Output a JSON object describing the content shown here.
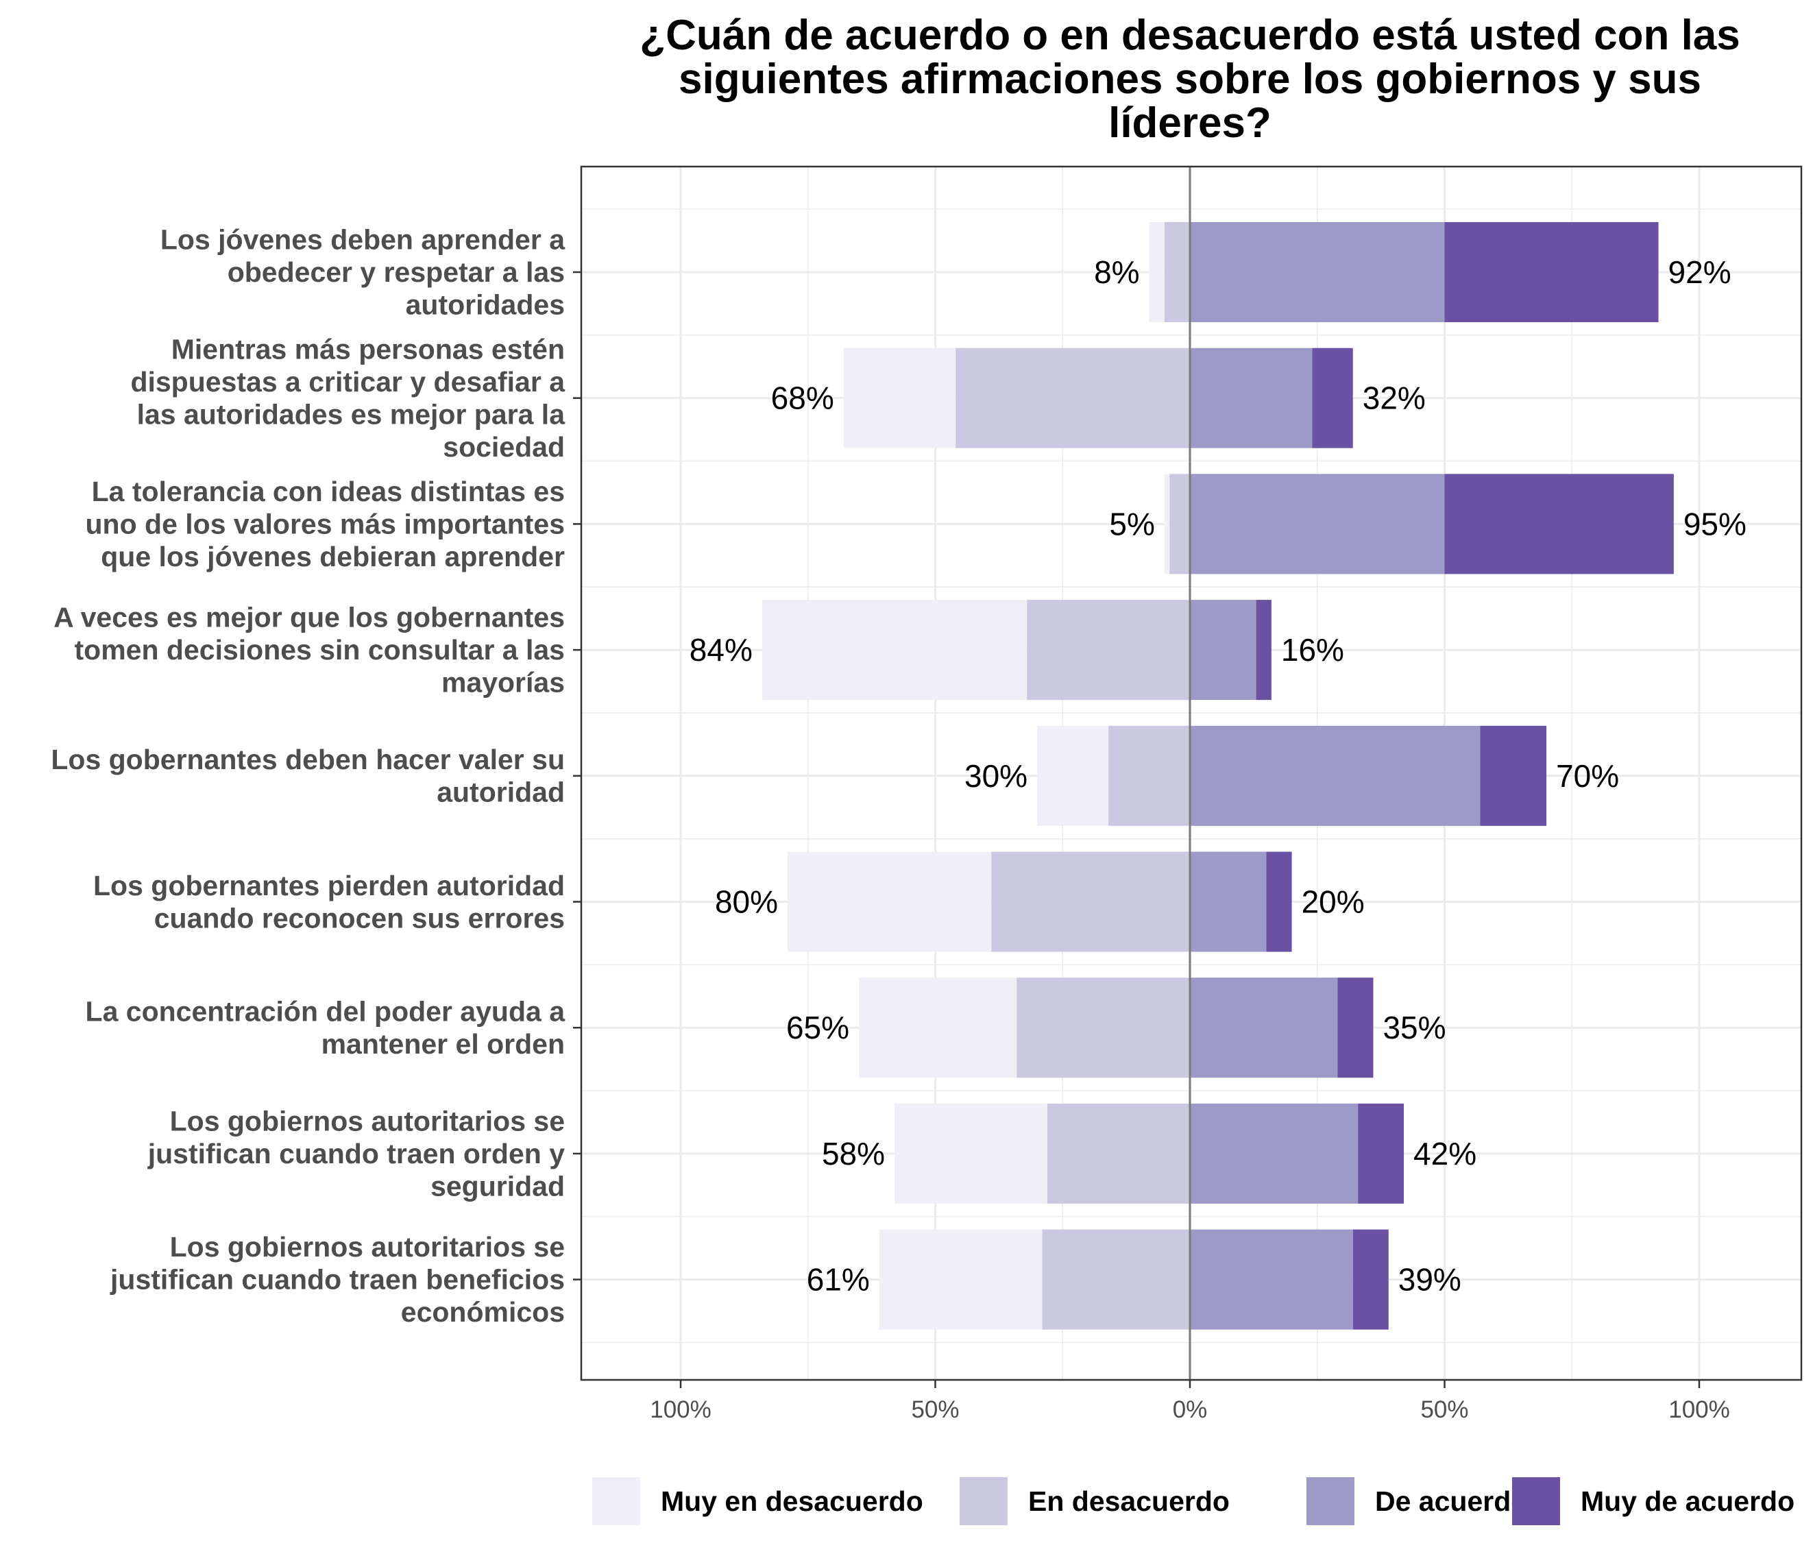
{
  "chart_data": {
    "type": "bar",
    "orientation": "horizontal-diverging",
    "title_lines": [
      "¿Cuán de acuerdo o en desacuerdo está usted con las",
      "siguientes afirmaciones sobre los gobiernos y sus",
      "líderes?"
    ],
    "xlim": [
      -100,
      100
    ],
    "x_ticks": [
      {
        "value": -100,
        "label": "100%"
      },
      {
        "value": -50,
        "label": "50%"
      },
      {
        "value": 0,
        "label": "0%"
      },
      {
        "value": 50,
        "label": "50%"
      },
      {
        "value": 100,
        "label": "100%"
      }
    ],
    "grid": true,
    "legend_position": "bottom",
    "series": [
      {
        "name": "Muy en desacuerdo",
        "color": "#f0eff7",
        "side": "negative"
      },
      {
        "name": "En desacuerdo",
        "color": "#cbc9e2",
        "side": "negative"
      },
      {
        "name": "De acuerdo",
        "color": "#9e9ac8",
        "side": "positive"
      },
      {
        "name": "Muy de acuerdo",
        "color": "#6a51a3",
        "side": "positive"
      }
    ],
    "categories": [
      {
        "lines": [
          "Los jóvenes deben aprender a",
          "obedecer y respetar a las",
          "autoridades"
        ],
        "values": [
          3,
          5,
          50,
          42
        ],
        "neg_label": "8%",
        "pos_label": "92%"
      },
      {
        "lines": [
          "Mientras más personas estén",
          "dispuestas a criticar y desafiar a",
          "las autoridades es mejor para la",
          "sociedad"
        ],
        "values": [
          22,
          46,
          24,
          8
        ],
        "neg_label": "68%",
        "pos_label": "32%"
      },
      {
        "lines": [
          "La tolerancia con ideas distintas es",
          "uno de los valores más importantes",
          "que los jóvenes debieran aprender"
        ],
        "values": [
          1,
          4,
          50,
          45
        ],
        "neg_label": "5%",
        "pos_label": "95%"
      },
      {
        "lines": [
          "A veces es mejor que los gobernantes",
          "tomen decisiones sin consultar a las",
          "mayorías"
        ],
        "values": [
          52,
          32,
          13,
          3
        ],
        "neg_label": "84%",
        "pos_label": "16%"
      },
      {
        "lines": [
          "Los gobernantes deben hacer valer su",
          "autoridad"
        ],
        "values": [
          14,
          16,
          57,
          13
        ],
        "neg_label": "30%",
        "pos_label": "70%"
      },
      {
        "lines": [
          "Los gobernantes pierden autoridad",
          "cuando reconocen sus errores"
        ],
        "values": [
          40,
          39,
          15,
          5
        ],
        "neg_label": "80%",
        "pos_label": "20%"
      },
      {
        "lines": [
          "La concentración del poder ayuda a",
          "mantener el orden"
        ],
        "values": [
          31,
          34,
          29,
          7
        ],
        "neg_label": "65%",
        "pos_label": "35%"
      },
      {
        "lines": [
          "Los gobiernos autoritarios se",
          "justifican cuando traen orden y",
          "seguridad"
        ],
        "values": [
          30,
          28,
          33,
          9
        ],
        "neg_label": "58%",
        "pos_label": "42%"
      },
      {
        "lines": [
          "Los gobiernos autoritarios se",
          "justifican cuando traen beneficios",
          "económicos"
        ],
        "values": [
          32,
          29,
          32,
          7
        ],
        "neg_label": "61%",
        "pos_label": "39%"
      }
    ]
  }
}
